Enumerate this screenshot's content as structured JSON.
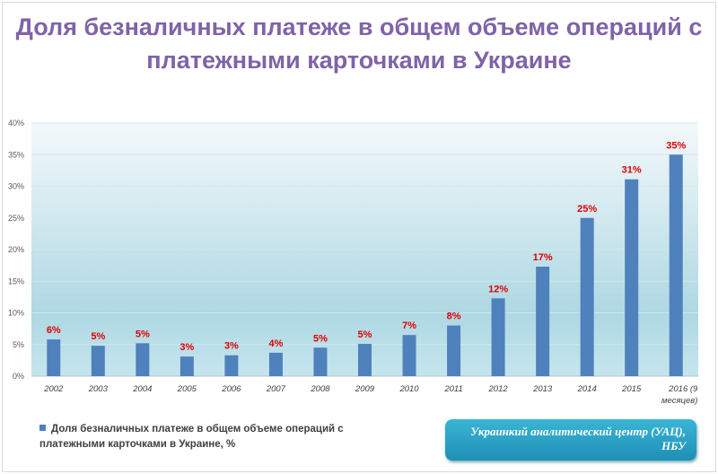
{
  "chart_data": {
    "type": "bar",
    "title": "Доля безналичных платеже в общем объеме операций с платежными карточками в Украине",
    "categories": [
      "2002",
      "2003",
      "2004",
      "2005",
      "2006",
      "2007",
      "2008",
      "2009",
      "2010",
      "2011",
      "2012",
      "2013",
      "2014",
      "2015",
      "2016 (9 месяцев)"
    ],
    "series": [
      {
        "name": "Доля безналичных платеже в общем объеме операций с платежными карточками в Украине, %",
        "values": [
          5.8,
          4.8,
          5.2,
          3.1,
          3.3,
          3.7,
          4.5,
          5.1,
          6.5,
          8.0,
          12.3,
          17.3,
          25.0,
          31.1,
          35.0
        ],
        "labels": [
          "6%",
          "5%",
          "5%",
          "3%",
          "3%",
          "4%",
          "5%",
          "5%",
          "7%",
          "8%",
          "12%",
          "17%",
          "25%",
          "31%",
          "35%"
        ],
        "color": "#4f81bd"
      }
    ],
    "yticks": [
      "0%",
      "5%",
      "10%",
      "15%",
      "20%",
      "25%",
      "30%",
      "35%",
      "40%"
    ],
    "ylim": [
      0,
      40
    ],
    "grid": true,
    "legend": "bottom-left",
    "label_color": "#e00000",
    "source": "Украинкий аналитический центр (УАЦ), НБУ"
  }
}
